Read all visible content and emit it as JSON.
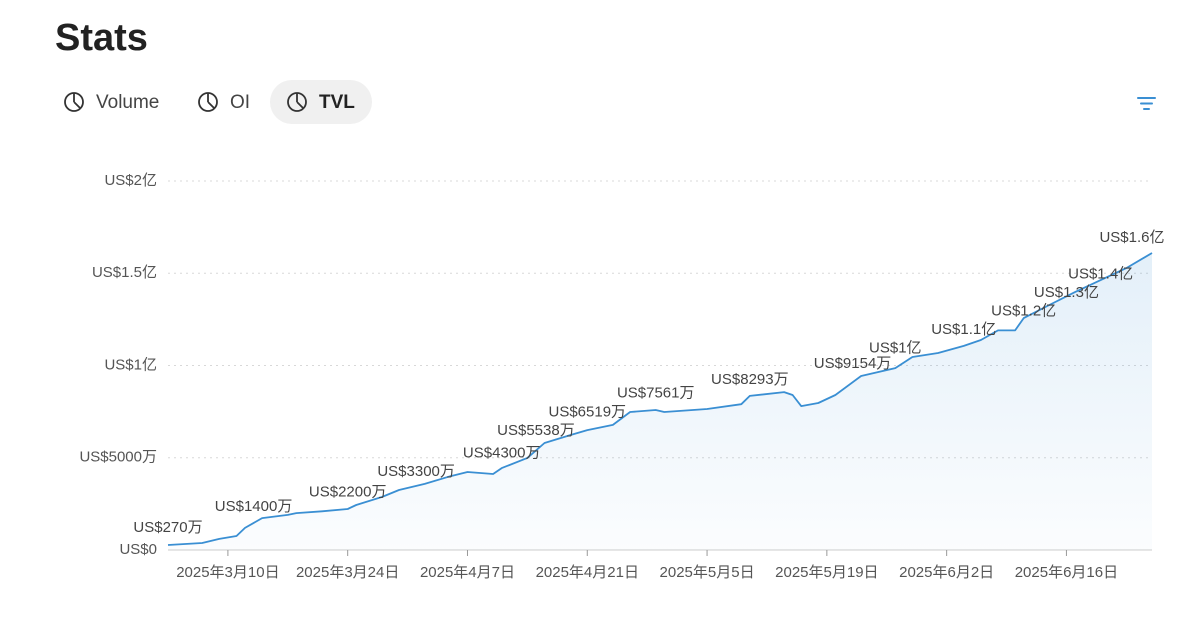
{
  "header": {
    "title": "Stats"
  },
  "tabs": [
    "Volume",
    "OI",
    "TVL"
  ],
  "selected_tab": "TVL",
  "chart_data": {
    "type": "line",
    "x": [
      "2025-03-03",
      "2025-03-07",
      "2025-03-09",
      "2025-03-11",
      "2025-03-12",
      "2025-03-14",
      "2025-03-17",
      "2025-03-18",
      "2025-03-21",
      "2025-03-24",
      "2025-03-25",
      "2025-03-28",
      "2025-03-30",
      "2025-04-02",
      "2025-04-05",
      "2025-04-07",
      "2025-04-10",
      "2025-04-11",
      "2025-04-14",
      "2025-04-16",
      "2025-04-19",
      "2025-04-21",
      "2025-04-24",
      "2025-04-26",
      "2025-04-29",
      "2025-04-30",
      "2025-05-05",
      "2025-05-09",
      "2025-05-10",
      "2025-05-14",
      "2025-05-15",
      "2025-05-16",
      "2025-05-18",
      "2025-05-20",
      "2025-05-23",
      "2025-05-27",
      "2025-05-29",
      "2025-06-01",
      "2025-06-04",
      "2025-06-06",
      "2025-06-08",
      "2025-06-10",
      "2025-06-11",
      "2025-06-14",
      "2025-06-17",
      "2025-06-20",
      "2025-06-23",
      "2025-06-26"
    ],
    "series": [
      {
        "color": "#3a8fd3",
        "values": [
          2700000,
          3800000,
          6000000,
          7600000,
          12000000,
          17300000,
          19000000,
          20000000,
          21000000,
          22200000,
          24400000,
          28700000,
          32500000,
          35800000,
          40000000,
          42300000,
          41200000,
          44400000,
          49900000,
          58000000,
          62300000,
          65000000,
          67800000,
          74800000,
          75900000,
          74800000,
          76400000,
          79000000,
          83500000,
          85600000,
          84000000,
          78000000,
          79700000,
          84000000,
          94300000,
          98600000,
          104600000,
          106800000,
          110600000,
          113800000,
          119000000,
          119000000,
          125700000,
          132800000,
          139800000,
          146300000,
          152800000,
          161000000
        ]
      }
    ],
    "labels": [
      {
        "x": "2025-03-03",
        "value": 2700000,
        "label": "US$270万"
      },
      {
        "x": "2025-03-13",
        "value": 14000000,
        "label": "US$1400万"
      },
      {
        "x": "2025-03-24",
        "value": 22000000,
        "label": "US$2200万"
      },
      {
        "x": "2025-04-01",
        "value": 33000000,
        "label": "US$3300万"
      },
      {
        "x": "2025-04-11",
        "value": 43000000,
        "label": "US$4300万"
      },
      {
        "x": "2025-04-15",
        "value": 55380000,
        "label": "US$5538万"
      },
      {
        "x": "2025-04-21",
        "value": 65190000,
        "label": "US$6519万"
      },
      {
        "x": "2025-04-29",
        "value": 75610000,
        "label": "US$7561万"
      },
      {
        "x": "2025-05-10",
        "value": 82930000,
        "label": "US$8293万"
      },
      {
        "x": "2025-05-22",
        "value": 91540000,
        "label": "US$9154万"
      },
      {
        "x": "2025-05-27",
        "value": 100000000,
        "label": "US$1亿"
      },
      {
        "x": "2025-06-04",
        "value": 110000000,
        "label": "US$1.1亿"
      },
      {
        "x": "2025-06-11",
        "value": 120000000,
        "label": "US$1.2亿"
      },
      {
        "x": "2025-06-16",
        "value": 130000000,
        "label": "US$1.3亿"
      },
      {
        "x": "2025-06-20",
        "value": 140000000,
        "label": "US$1.4亿"
      },
      {
        "x": "2025-06-24",
        "value": 160000000,
        "label": "US$1.6亿"
      }
    ],
    "xlim": [
      "2025-03-03",
      "2025-06-26"
    ],
    "xticks": [
      {
        "value": "2025-03-10",
        "label": "2025年3月10日"
      },
      {
        "value": "2025-03-24",
        "label": "2025年3月24日"
      },
      {
        "value": "2025-04-07",
        "label": "2025年4月7日"
      },
      {
        "value": "2025-04-21",
        "label": "2025年4月21日"
      },
      {
        "value": "2025-05-05",
        "label": "2025年5月5日"
      },
      {
        "value": "2025-05-19",
        "label": "2025年5月19日"
      },
      {
        "value": "2025-06-02",
        "label": "2025年6月2日"
      },
      {
        "value": "2025-06-16",
        "label": "2025年6月16日"
      }
    ],
    "ylim": [
      0,
      200000000
    ],
    "yticks": [
      {
        "value": 0,
        "label": "US$0"
      },
      {
        "value": 50000000,
        "label": "US$5000万"
      },
      {
        "value": 100000000,
        "label": "US$1亿"
      },
      {
        "value": 150000000,
        "label": "US$1.5亿"
      },
      {
        "value": 200000000,
        "label": "US$2亿"
      }
    ],
    "grid": true
  }
}
